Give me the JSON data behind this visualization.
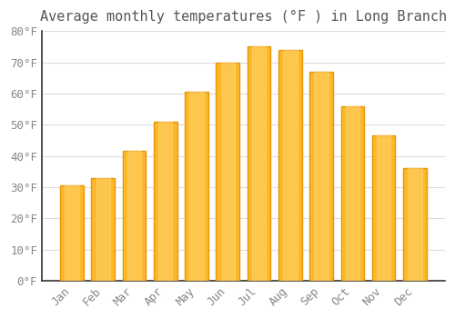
{
  "title": "Average monthly temperatures (°F ) in Long Branch",
  "categories": [
    "Jan",
    "Feb",
    "Mar",
    "Apr",
    "May",
    "Jun",
    "Jul",
    "Aug",
    "Sep",
    "Oct",
    "Nov",
    "Dec"
  ],
  "values": [
    30.5,
    33,
    41.5,
    51,
    60.5,
    70,
    75,
    74,
    67,
    56,
    46.5,
    36
  ],
  "bar_color": "#FDB827",
  "bar_edge_color": "#E8960A",
  "background_color": "#FFFFFF",
  "plot_bg_color": "#FFFFFF",
  "grid_color": "#DDDDDD",
  "ylim": [
    0,
    80
  ],
  "yticks": [
    0,
    10,
    20,
    30,
    40,
    50,
    60,
    70,
    80
  ],
  "title_fontsize": 11,
  "tick_fontsize": 9,
  "tick_label_color": "#888888",
  "title_color": "#555555",
  "spine_color": "#333333"
}
